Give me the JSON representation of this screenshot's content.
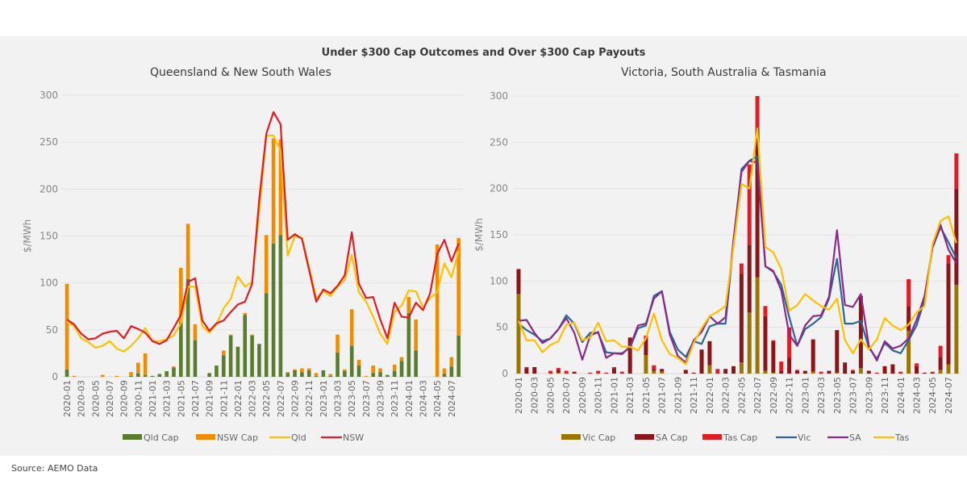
{
  "title": "Under $300 Cap Outcomes and Over $300 Cap Payouts",
  "source": "Source: AEMO Data",
  "chart_data": [
    {
      "type": "bar+line",
      "subtitle": "Queensland & New South Wales",
      "ylabel": "$/MWh",
      "ylim": [
        0,
        300
      ],
      "yticks": [
        0,
        50,
        100,
        150,
        200,
        250,
        300
      ],
      "grid": true,
      "legend_position": "bottom",
      "x_tick_labels": [
        "2020-01",
        "2020-03",
        "2020-05",
        "2020-07",
        "2020-09",
        "2020-11",
        "2021-01",
        "2021-03",
        "2021-05",
        "2021-07",
        "2021-09",
        "2021-11",
        "2022-01",
        "2022-03",
        "2022-05",
        "2022-07",
        "2022-09",
        "2022-11",
        "2023-01",
        "2023-03",
        "2023-05",
        "2023-07",
        "2023-09",
        "2023-11",
        "2024-01",
        "2024-03",
        "2024-05",
        "2024-07"
      ],
      "stacked_bars": [
        {
          "name": "Qld Cap",
          "color": "#5b7b2f",
          "values": [
            8,
            0,
            0,
            0,
            0,
            0,
            0,
            0,
            0,
            1,
            4,
            2,
            1,
            3,
            6,
            10,
            58,
            104,
            39,
            0,
            4,
            12,
            23,
            44,
            32,
            66,
            44,
            35,
            89,
            142,
            151,
            4,
            7,
            5,
            7,
            1,
            7,
            1,
            26,
            6,
            33,
            12,
            0,
            4,
            5,
            2,
            6,
            17,
            68,
            28,
            0,
            0,
            0,
            3,
            11,
            44
          ]
        },
        {
          "name": "NSW Cap",
          "color": "#f08c00",
          "values": [
            91,
            1,
            0,
            0,
            0,
            2,
            0,
            1,
            0,
            4,
            11,
            23,
            0,
            0,
            0,
            1,
            58,
            59,
            17,
            0,
            0,
            0,
            5,
            1,
            0,
            2,
            1,
            0,
            62,
            112,
            102,
            1,
            1,
            4,
            2,
            3,
            0,
            2,
            19,
            2,
            39,
            6,
            1,
            8,
            4,
            0,
            7,
            4,
            17,
            33,
            0,
            0,
            141,
            6,
            10,
            104
          ]
        }
      ],
      "lines": [
        {
          "name": "Qld",
          "color": "#ffc000",
          "values": [
            59,
            54,
            41,
            37,
            31,
            33,
            38,
            30,
            27,
            33,
            41,
            52,
            38,
            38,
            40,
            44,
            57,
            96,
            96,
            54,
            47,
            56,
            73,
            83,
            107,
            96,
            101,
            175,
            257,
            257,
            241,
            129,
            150,
            148,
            117,
            84,
            91,
            86,
            96,
            103,
            130,
            90,
            80,
            64,
            46,
            35,
            69,
            76,
            92,
            91,
            74,
            84,
            90,
            121,
            106,
            134
          ]
        },
        {
          "name": "NSW",
          "color": "#e31b23",
          "values": [
            61,
            56,
            46,
            40,
            41,
            46,
            48,
            49,
            41,
            54,
            51,
            47,
            38,
            35,
            39,
            52,
            66,
            101,
            105,
            60,
            49,
            57,
            60,
            69,
            77,
            80,
            99,
            189,
            259,
            282,
            269,
            146,
            152,
            147,
            114,
            80,
            93,
            89,
            97,
            108,
            154,
            99,
            84,
            85,
            61,
            41,
            79,
            64,
            63,
            79,
            71,
            89,
            131,
            146,
            123,
            142
          ]
        }
      ]
    },
    {
      "type": "bar+line",
      "subtitle": "Victoria, South Australia & Tasmania",
      "ylabel": "$/MWh",
      "ylim": [
        0,
        300
      ],
      "yticks": [
        0,
        50,
        100,
        150,
        200,
        250,
        300
      ],
      "grid": true,
      "legend_position": "bottom",
      "x_tick_labels": [
        "2020-01",
        "2020-03",
        "2020-05",
        "2020-07",
        "2020-09",
        "2020-11",
        "2021-01",
        "2021-03",
        "2021-05",
        "2021-07",
        "2021-09",
        "2021-11",
        "2022-01",
        "2022-03",
        "2022-05",
        "2022-07",
        "2022-09",
        "2022-11",
        "2023-01",
        "2023-03",
        "2023-05",
        "2023-07",
        "2023-09",
        "2023-11",
        "2024-01",
        "2024-03",
        "2024-05",
        "2024-07"
      ],
      "stacked_bars": [
        {
          "name": "Vic Cap",
          "color": "#9a7600",
          "values": [
            86,
            0,
            0,
            0,
            0,
            1,
            0,
            0,
            0,
            0,
            0,
            0,
            0,
            0,
            0,
            0,
            20,
            3,
            2,
            0,
            0,
            0,
            0,
            0,
            9,
            0,
            0,
            0,
            12,
            66,
            104,
            3,
            1,
            0,
            0,
            0,
            0,
            2,
            0,
            0,
            1,
            0,
            0,
            6,
            0,
            0,
            0,
            0,
            0,
            46,
            0,
            0,
            0,
            4,
            10,
            96
          ]
        },
        {
          "name": "SA Cap",
          "color": "#8b1518",
          "values": [
            27,
            6,
            7,
            0,
            0,
            3,
            0,
            2,
            0,
            0,
            0,
            0,
            6,
            0,
            39,
            0,
            17,
            2,
            3,
            0,
            0,
            4,
            1,
            26,
            26,
            0,
            5,
            8,
            96,
            73,
            160,
            59,
            34,
            3,
            17,
            3,
            3,
            35,
            0,
            3,
            46,
            12,
            3,
            78,
            3,
            0,
            8,
            10,
            0,
            27,
            8,
            1,
            1,
            14,
            109,
            104
          ]
        },
        {
          "name": "Tas Cap",
          "color": "#e31b23",
          "values": [
            0,
            1,
            0,
            0,
            3,
            2,
            3,
            0,
            0,
            1,
            3,
            1,
            1,
            2,
            0,
            0,
            4,
            4,
            0,
            0,
            0,
            0,
            0,
            0,
            0,
            5,
            0,
            0,
            11,
            87,
            36,
            11,
            1,
            10,
            33,
            1,
            0,
            0,
            2,
            0,
            0,
            0,
            1,
            0,
            0,
            1,
            0,
            0,
            2,
            29,
            3,
            0,
            1,
            12,
            9,
            38
          ]
        }
      ],
      "lines": [
        {
          "name": "Vic",
          "color": "#2f6496",
          "values": [
            54,
            47,
            42,
            35,
            38,
            48,
            63,
            54,
            34,
            44,
            44,
            23,
            22,
            22,
            28,
            49,
            52,
            84,
            89,
            45,
            26,
            18,
            35,
            32,
            51,
            54,
            54,
            142,
            221,
            230,
            235,
            116,
            110,
            96,
            61,
            30,
            48,
            54,
            61,
            81,
            124,
            54,
            54,
            57,
            28,
            16,
            33,
            25,
            22,
            36,
            52,
            80,
            136,
            158,
            142,
            125
          ]
        },
        {
          "name": "SA",
          "color": "#8b2a8b",
          "values": [
            57,
            58,
            44,
            33,
            38,
            48,
            60,
            44,
            15,
            41,
            45,
            17,
            22,
            21,
            29,
            52,
            54,
            81,
            89,
            42,
            19,
            12,
            36,
            45,
            62,
            54,
            61,
            145,
            218,
            230,
            228,
            116,
            111,
            90,
            42,
            30,
            52,
            62,
            63,
            83,
            155,
            74,
            72,
            86,
            30,
            14,
            35,
            27,
            30,
            38,
            58,
            84,
            136,
            161,
            134,
            119
          ]
        },
        {
          "name": "Tas",
          "color": "#ffc000",
          "values": [
            57,
            36,
            36,
            23,
            31,
            35,
            53,
            55,
            36,
            39,
            55,
            35,
            36,
            29,
            29,
            25,
            38,
            65,
            36,
            21,
            17,
            10,
            33,
            49,
            62,
            67,
            73,
            137,
            205,
            200,
            265,
            137,
            131,
            113,
            68,
            74,
            86,
            79,
            73,
            69,
            81,
            36,
            22,
            37,
            26,
            37,
            60,
            52,
            47,
            53,
            66,
            73,
            140,
            165,
            170,
            141
          ]
        }
      ]
    }
  ]
}
